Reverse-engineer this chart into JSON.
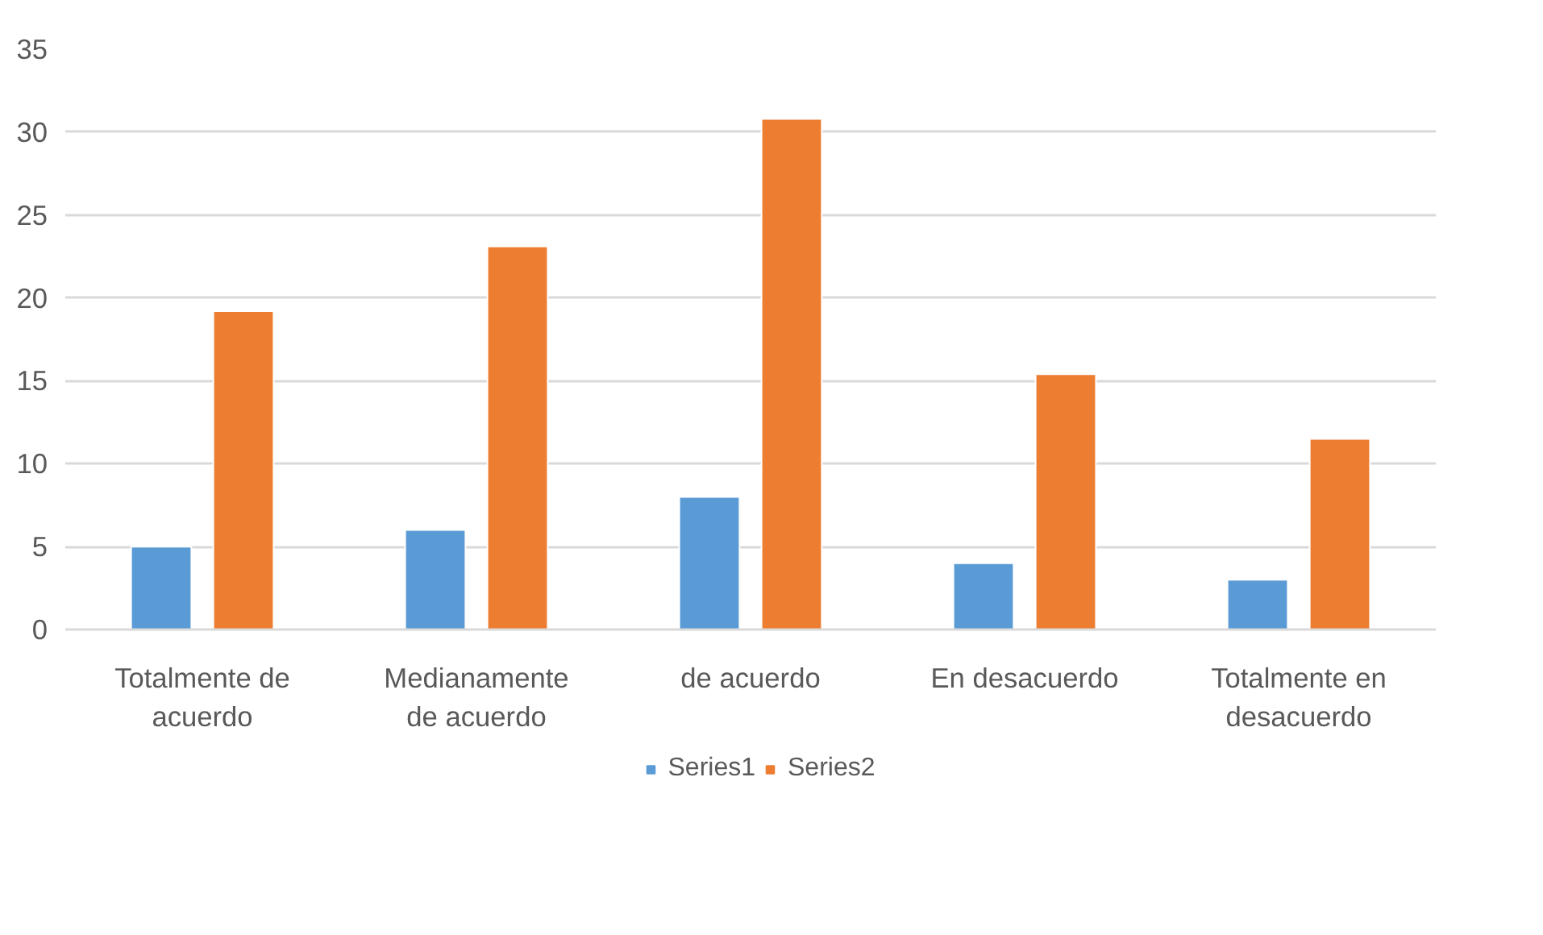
{
  "chart_data": {
    "type": "bar",
    "categories": [
      "Totalmente de acuerdo",
      "Medianamente de acuerdo",
      "de acuerdo",
      "En desacuerdo",
      "Totalmente en desacuerdo"
    ],
    "series": [
      {
        "name": "Series1",
        "color": "#5b9bd5",
        "values": [
          5,
          6,
          8,
          4,
          3
        ]
      },
      {
        "name": "Series2",
        "color": "#ed7d31",
        "values": [
          19.2,
          23.1,
          30.8,
          15.4,
          11.5
        ]
      }
    ],
    "ylim": [
      0,
      35
    ],
    "yticks": [
      0,
      5,
      10,
      15,
      20,
      25,
      30,
      35
    ],
    "grid": "y",
    "legend": "bottom"
  }
}
